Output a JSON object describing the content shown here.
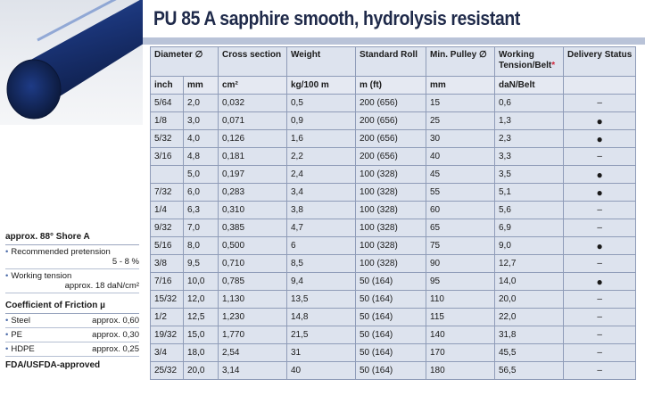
{
  "title": "PU 85 A sapphire smooth, hydrolysis resistant",
  "properties": {
    "shore": "approx. 88° Shore A",
    "pretension_label": "Recommended pretension",
    "pretension_value": "5 - 8 %",
    "tension_label": "Working tension",
    "tension_value": "approx. 18 daN/cm²",
    "friction_heading": "Coefficient of Friction µ",
    "friction": [
      {
        "material": "Steel",
        "value": "approx. 0,60"
      },
      {
        "material": "PE",
        "value": "approx. 0,30"
      },
      {
        "material": "HDPE",
        "value": "approx. 0,25"
      }
    ],
    "approval": "FDA/USFDA-approved"
  },
  "table": {
    "headers": {
      "diameter": "Diameter ∅",
      "cross_section": "Cross section",
      "weight": "Weight",
      "standard_roll": "Standard Roll",
      "min_pulley": "Min. Pulley ∅",
      "working_tension": "Working Tension/Belt",
      "working_tension_mark": "*",
      "delivery": "Delivery Status"
    },
    "units": {
      "inch": "inch",
      "mm": "mm",
      "cm2": "cm²",
      "weight": "kg/100 m",
      "roll": "m (ft)",
      "pulley": "mm",
      "tension": "daN/Belt"
    },
    "rows": [
      {
        "inch": "5/64",
        "mm": "2,0",
        "cs": "0,032",
        "w": "0,5",
        "roll": "200 (656)",
        "pulley": "15",
        "tension": "0,6",
        "status": "–"
      },
      {
        "inch": "1/8",
        "mm": "3,0",
        "cs": "0,071",
        "w": "0,9",
        "roll": "200 (656)",
        "pulley": "25",
        "tension": "1,3",
        "status": "●"
      },
      {
        "inch": "5/32",
        "mm": "4,0",
        "cs": "0,126",
        "w": "1,6",
        "roll": "200 (656)",
        "pulley": "30",
        "tension": "2,3",
        "status": "●"
      },
      {
        "inch": "3/16",
        "mm": "4,8",
        "cs": "0,181",
        "w": "2,2",
        "roll": "200 (656)",
        "pulley": "40",
        "tension": "3,3",
        "status": "–"
      },
      {
        "inch": "",
        "mm": "5,0",
        "cs": "0,197",
        "w": "2,4",
        "roll": "100 (328)",
        "pulley": "45",
        "tension": "3,5",
        "status": "●"
      },
      {
        "inch": "7/32",
        "mm": "6,0",
        "cs": "0,283",
        "w": "3,4",
        "roll": "100 (328)",
        "pulley": "55",
        "tension": "5,1",
        "status": "●"
      },
      {
        "inch": "1/4",
        "mm": "6,3",
        "cs": "0,310",
        "w": "3,8",
        "roll": "100 (328)",
        "pulley": "60",
        "tension": "5,6",
        "status": "–"
      },
      {
        "inch": "9/32",
        "mm": "7,0",
        "cs": "0,385",
        "w": "4,7",
        "roll": "100 (328)",
        "pulley": "65",
        "tension": "6,9",
        "status": "–"
      },
      {
        "inch": "5/16",
        "mm": "8,0",
        "cs": "0,500",
        "w": "6",
        "roll": "100 (328)",
        "pulley": "75",
        "tension": "9,0",
        "status": "●"
      },
      {
        "inch": "3/8",
        "mm": "9,5",
        "cs": "0,710",
        "w": "8,5",
        "roll": "100 (328)",
        "pulley": "90",
        "tension": "12,7",
        "status": "–"
      },
      {
        "inch": "7/16",
        "mm": "10,0",
        "cs": "0,785",
        "w": "9,4",
        "roll": "50 (164)",
        "pulley": "95",
        "tension": "14,0",
        "status": "●"
      },
      {
        "inch": "15/32",
        "mm": "12,0",
        "cs": "1,130",
        "w": "13,5",
        "roll": "50 (164)",
        "pulley": "110",
        "tension": "20,0",
        "status": "–"
      },
      {
        "inch": "1/2",
        "mm": "12,5",
        "cs": "1,230",
        "w": "14,8",
        "roll": "50 (164)",
        "pulley": "115",
        "tension": "22,0",
        "status": "–"
      },
      {
        "inch": "19/32",
        "mm": "15,0",
        "cs": "1,770",
        "w": "21,5",
        "roll": "50 (164)",
        "pulley": "140",
        "tension": "31,8",
        "status": "–"
      },
      {
        "inch": "3/4",
        "mm": "18,0",
        "cs": "2,54",
        "w": "31",
        "roll": "50 (164)",
        "pulley": "170",
        "tension": "45,5",
        "status": "–"
      },
      {
        "inch": "25/32",
        "mm": "20,0",
        "cs": "3,14",
        "w": "40",
        "roll": "50 (164)",
        "pulley": "180",
        "tension": "56,5",
        "status": "–"
      }
    ]
  }
}
